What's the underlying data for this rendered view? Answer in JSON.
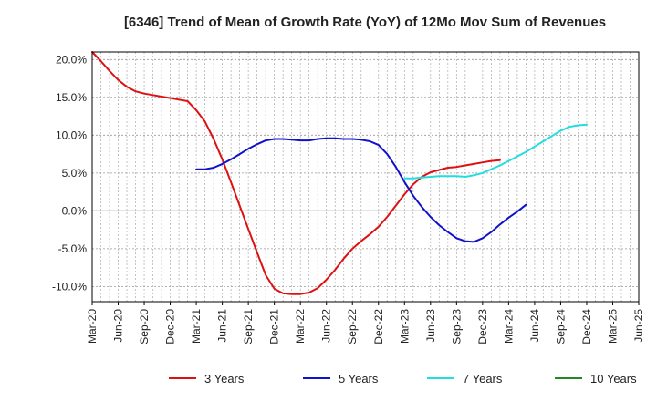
{
  "chart_data": {
    "type": "line",
    "title": "[6346]  Trend of Mean of Growth Rate (YoY) of 12Mo Mov Sum of Revenues",
    "xlabel": "",
    "ylabel": "",
    "ylim": [
      -12,
      21
    ],
    "y_ticks": [
      20,
      15,
      10,
      5,
      0,
      -5,
      -10
    ],
    "y_tick_labels": [
      "20.0%",
      "15.0%",
      "10.0%",
      "5.0%",
      "0.0%",
      "-5.0%",
      "-10.0%"
    ],
    "x_tick_labels": [
      "Mar-20",
      "Jun-20",
      "Sep-20",
      "Dec-20",
      "Mar-21",
      "Jun-21",
      "Sep-21",
      "Dec-21",
      "Mar-22",
      "Jun-22",
      "Sep-22",
      "Dec-22",
      "Mar-23",
      "Jun-23",
      "Sep-23",
      "Dec-23",
      "Mar-24",
      "Jun-24",
      "Sep-24",
      "Dec-24",
      "Mar-25",
      "Jun-25"
    ],
    "grid": true,
    "legend_position": "bottom",
    "series": [
      {
        "name": "3 Years",
        "color": "#dd1111",
        "points": [
          [
            0,
            21.0
          ],
          [
            1,
            19.8
          ],
          [
            2,
            18.5
          ],
          [
            3,
            17.3
          ],
          [
            4,
            16.4
          ],
          [
            5,
            15.8
          ],
          [
            6,
            15.5
          ],
          [
            7,
            15.3
          ],
          [
            8,
            15.1
          ],
          [
            9,
            14.9
          ],
          [
            10,
            14.7
          ],
          [
            11,
            14.5
          ],
          [
            12,
            13.3
          ],
          [
            13,
            11.8
          ],
          [
            14,
            9.5
          ],
          [
            15,
            6.8
          ],
          [
            16,
            3.8
          ],
          [
            17,
            0.7
          ],
          [
            18,
            -2.4
          ],
          [
            19,
            -5.5
          ],
          [
            20,
            -8.5
          ],
          [
            21,
            -10.3
          ],
          [
            22,
            -10.9
          ],
          [
            23,
            -11.0
          ],
          [
            24,
            -11.0
          ],
          [
            25,
            -10.8
          ],
          [
            26,
            -10.2
          ],
          [
            27,
            -9.1
          ],
          [
            28,
            -7.8
          ],
          [
            29,
            -6.3
          ],
          [
            30,
            -5.0
          ],
          [
            31,
            -4.0
          ],
          [
            32,
            -3.1
          ],
          [
            33,
            -2.1
          ],
          [
            34,
            -0.8
          ],
          [
            35,
            0.7
          ],
          [
            36,
            2.2
          ],
          [
            37,
            3.5
          ],
          [
            38,
            4.5
          ],
          [
            39,
            5.1
          ],
          [
            40,
            5.4
          ],
          [
            41,
            5.7
          ],
          [
            42,
            5.8
          ],
          [
            43,
            6.0
          ],
          [
            44,
            6.2
          ],
          [
            45,
            6.4
          ],
          [
            46,
            6.6
          ],
          [
            47,
            6.7
          ]
        ]
      },
      {
        "name": "5 Years",
        "color": "#1111cc",
        "points": [
          [
            12,
            5.5
          ],
          [
            13,
            5.5
          ],
          [
            14,
            5.7
          ],
          [
            15,
            6.2
          ],
          [
            16,
            6.8
          ],
          [
            17,
            7.5
          ],
          [
            18,
            8.2
          ],
          [
            19,
            8.8
          ],
          [
            20,
            9.3
          ],
          [
            21,
            9.5
          ],
          [
            22,
            9.5
          ],
          [
            23,
            9.4
          ],
          [
            24,
            9.3
          ],
          [
            25,
            9.3
          ],
          [
            26,
            9.5
          ],
          [
            27,
            9.6
          ],
          [
            28,
            9.6
          ],
          [
            29,
            9.5
          ],
          [
            30,
            9.5
          ],
          [
            31,
            9.4
          ],
          [
            32,
            9.2
          ],
          [
            33,
            8.7
          ],
          [
            34,
            7.5
          ],
          [
            35,
            5.8
          ],
          [
            36,
            3.8
          ],
          [
            37,
            2.0
          ],
          [
            38,
            0.5
          ],
          [
            39,
            -0.8
          ],
          [
            40,
            -1.9
          ],
          [
            41,
            -2.8
          ],
          [
            42,
            -3.6
          ],
          [
            43,
            -4.0
          ],
          [
            44,
            -4.1
          ],
          [
            45,
            -3.6
          ],
          [
            46,
            -2.8
          ],
          [
            47,
            -1.8
          ],
          [
            48,
            -0.9
          ],
          [
            49,
            -0.1
          ],
          [
            50,
            0.8
          ]
        ]
      },
      {
        "name": "7 Years",
        "color": "#22dddd",
        "points": [
          [
            36,
            4.3
          ],
          [
            37,
            4.3
          ],
          [
            38,
            4.4
          ],
          [
            39,
            4.5
          ],
          [
            40,
            4.6
          ],
          [
            41,
            4.6
          ],
          [
            42,
            4.6
          ],
          [
            43,
            4.5
          ],
          [
            44,
            4.7
          ],
          [
            45,
            5.0
          ],
          [
            46,
            5.5
          ],
          [
            47,
            6.0
          ],
          [
            48,
            6.6
          ],
          [
            49,
            7.2
          ],
          [
            50,
            7.8
          ],
          [
            51,
            8.5
          ],
          [
            52,
            9.2
          ],
          [
            53,
            9.9
          ],
          [
            54,
            10.6
          ],
          [
            55,
            11.1
          ],
          [
            56,
            11.3
          ],
          [
            57,
            11.4
          ]
        ]
      },
      {
        "name": "10 Years",
        "color": "#228822",
        "points": []
      }
    ]
  }
}
